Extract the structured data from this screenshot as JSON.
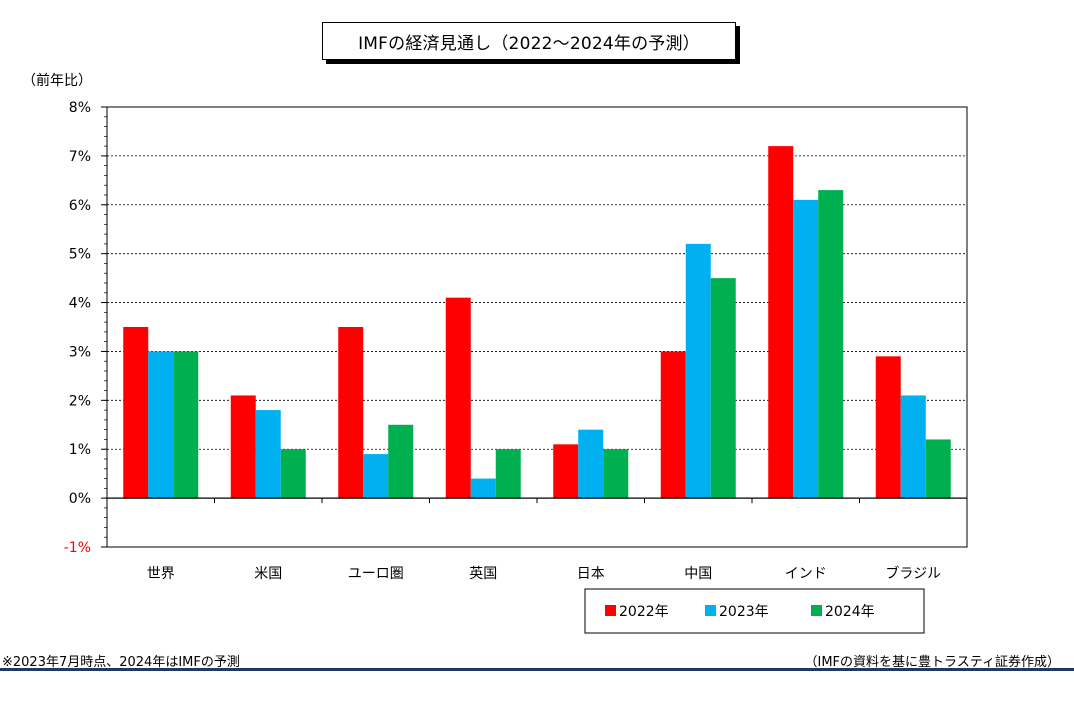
{
  "title": "IMFの経済見通し（2022～2024年の予測）",
  "unit_label": "（前年比）",
  "footnote": "※2023年7月時点、2024年はIMFの予測",
  "source": "（IMFの資料を基に豊トラスティ証券作成）",
  "colors": {
    "2022年": "#ff0000",
    "2023年": "#00b0f0",
    "2024年": "#00b050",
    "negative_tick": "#ff0000",
    "rule": "#1f3864"
  },
  "chart_data": {
    "type": "bar",
    "categories": [
      "世界",
      "米国",
      "ユーロ圏",
      "英国",
      "日本",
      "中国",
      "インド",
      "ブラジル"
    ],
    "series": [
      {
        "name": "2022年",
        "values": [
          3.5,
          2.1,
          3.5,
          4.1,
          1.1,
          3.0,
          7.2,
          2.9
        ]
      },
      {
        "name": "2023年",
        "values": [
          3.0,
          1.8,
          0.9,
          0.4,
          1.4,
          5.2,
          6.1,
          2.1
        ]
      },
      {
        "name": "2024年",
        "values": [
          3.0,
          1.0,
          1.5,
          1.0,
          1.0,
          4.5,
          6.3,
          1.2
        ]
      }
    ],
    "ylim": [
      -1,
      8
    ],
    "yticks": [
      "-1%",
      "0%",
      "1%",
      "2%",
      "3%",
      "4%",
      "5%",
      "6%",
      "7%",
      "8%"
    ],
    "grid": true,
    "legend_position": "bottom-right"
  }
}
